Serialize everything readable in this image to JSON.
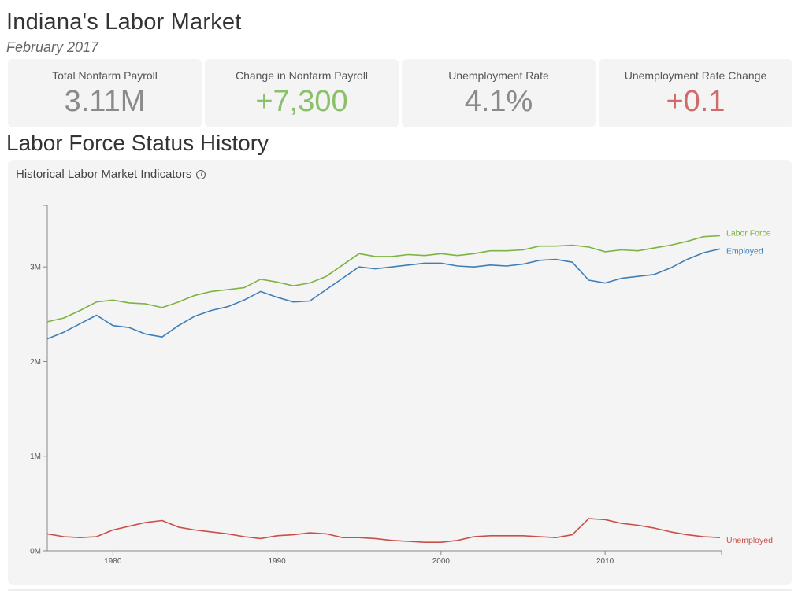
{
  "header": {
    "title": "Indiana's Labor Market",
    "subtitle": "February 2017"
  },
  "kpis": [
    {
      "label": "Total Nonfarm Payroll",
      "value": "3.11M",
      "tone": "neutral"
    },
    {
      "label": "Change in Nonfarm Payroll",
      "value": "+7,300",
      "tone": "positive"
    },
    {
      "label": "Unemployment Rate",
      "value": "4.1%",
      "tone": "neutral"
    },
    {
      "label": "Unemployment Rate Change",
      "value": "+0.1",
      "tone": "negative"
    }
  ],
  "section": {
    "title": "Labor Force Status History"
  },
  "chart_card": {
    "heading": "Historical Labor Market Indicators",
    "info_icon": "info-icon"
  },
  "colors": {
    "labor_force": "#7cb342",
    "employed": "#3f7fb8",
    "unemployed": "#c9504a",
    "positive": "#8bc06a",
    "negative": "#d16a6a"
  },
  "chart_data": {
    "type": "line",
    "title": "Historical Labor Market Indicators",
    "xlabel": "",
    "ylabel": "",
    "xlim": [
      1976,
      2017.1
    ],
    "ylim": [
      0,
      3650000
    ],
    "x_ticks": [
      1980,
      1990,
      2000,
      2010
    ],
    "y_ticks": [
      {
        "value": 0,
        "label": "0M"
      },
      {
        "value": 1000000,
        "label": "1M"
      },
      {
        "value": 2000000,
        "label": "2M"
      },
      {
        "value": 3000000,
        "label": "3M"
      }
    ],
    "grid": false,
    "legend": "end-of-line labels",
    "series": [
      {
        "name": "Labor Force",
        "x": [
          1976,
          1977,
          1978,
          1979,
          1980,
          1981,
          1982,
          1983,
          1984,
          1985,
          1986,
          1987,
          1988,
          1989,
          1990,
          1991,
          1992,
          1993,
          1994,
          1995,
          1996,
          1997,
          1998,
          1999,
          2000,
          2001,
          2002,
          2003,
          2004,
          2005,
          2006,
          2007,
          2008,
          2009,
          2010,
          2011,
          2012,
          2013,
          2014,
          2015,
          2016,
          2017
        ],
        "values": [
          2420000,
          2460000,
          2540000,
          2630000,
          2650000,
          2620000,
          2610000,
          2570000,
          2630000,
          2700000,
          2740000,
          2760000,
          2780000,
          2870000,
          2840000,
          2800000,
          2830000,
          2900000,
          3020000,
          3140000,
          3110000,
          3110000,
          3130000,
          3120000,
          3140000,
          3120000,
          3140000,
          3170000,
          3170000,
          3180000,
          3220000,
          3220000,
          3230000,
          3210000,
          3160000,
          3180000,
          3170000,
          3200000,
          3230000,
          3270000,
          3320000,
          3330000
        ]
      },
      {
        "name": "Employed",
        "x": [
          1976,
          1977,
          1978,
          1979,
          1980,
          1981,
          1982,
          1983,
          1984,
          1985,
          1986,
          1987,
          1988,
          1989,
          1990,
          1991,
          1992,
          1993,
          1994,
          1995,
          1996,
          1997,
          1998,
          1999,
          2000,
          2001,
          2002,
          2003,
          2004,
          2005,
          2006,
          2007,
          2008,
          2009,
          2010,
          2011,
          2012,
          2013,
          2014,
          2015,
          2016,
          2017
        ],
        "values": [
          2240000,
          2310000,
          2400000,
          2490000,
          2380000,
          2360000,
          2290000,
          2260000,
          2380000,
          2480000,
          2540000,
          2580000,
          2650000,
          2740000,
          2680000,
          2630000,
          2640000,
          2760000,
          2880000,
          3000000,
          2980000,
          3000000,
          3020000,
          3040000,
          3040000,
          3010000,
          3000000,
          3020000,
          3010000,
          3030000,
          3070000,
          3080000,
          3050000,
          2860000,
          2830000,
          2880000,
          2900000,
          2920000,
          2990000,
          3080000,
          3150000,
          3190000
        ]
      },
      {
        "name": "Unemployed",
        "x": [
          1976,
          1977,
          1978,
          1979,
          1980,
          1981,
          1982,
          1983,
          1984,
          1985,
          1986,
          1987,
          1988,
          1989,
          1990,
          1991,
          1992,
          1993,
          1994,
          1995,
          1996,
          1997,
          1998,
          1999,
          2000,
          2001,
          2002,
          2003,
          2004,
          2005,
          2006,
          2007,
          2008,
          2009,
          2010,
          2011,
          2012,
          2013,
          2014,
          2015,
          2016,
          2017
        ],
        "values": [
          180000,
          150000,
          140000,
          150000,
          220000,
          260000,
          300000,
          320000,
          250000,
          220000,
          200000,
          180000,
          150000,
          130000,
          160000,
          170000,
          190000,
          180000,
          140000,
          140000,
          130000,
          110000,
          100000,
          90000,
          90000,
          110000,
          150000,
          160000,
          160000,
          160000,
          150000,
          140000,
          170000,
          340000,
          330000,
          290000,
          270000,
          240000,
          200000,
          170000,
          150000,
          140000
        ]
      }
    ]
  }
}
